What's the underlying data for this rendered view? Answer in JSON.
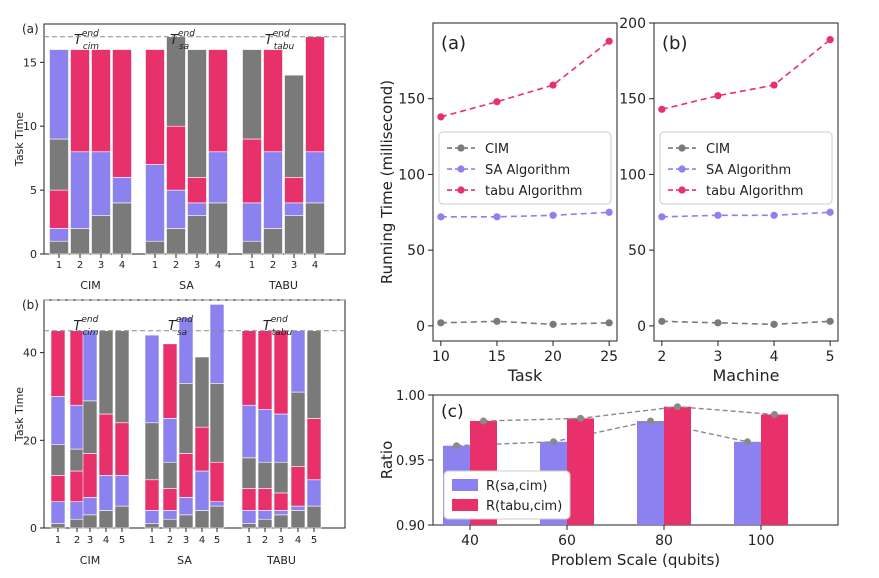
{
  "colors": {
    "gray": "#7a7a7a",
    "blue": "#8b82f0",
    "red": "#e8306a",
    "dash": "#8a8a8a"
  },
  "chart_data": [
    {
      "id": "stacked-a",
      "panel_label": "(a)",
      "type": "bar",
      "ylabel": "Task Time",
      "ylim": [
        0,
        18
      ],
      "yticks": [
        0,
        5,
        10,
        15
      ],
      "groups": [
        {
          "name": "CIM",
          "ann_base": "T",
          "ann_sup": "end",
          "ann_sub": "cim",
          "bar_labels": [
            "1",
            "2",
            "3",
            "4"
          ],
          "bars": [
            [
              1,
              1,
              3,
              4,
              7
            ],
            [
              2,
              6,
              8
            ],
            [
              3,
              5,
              8
            ],
            [
              4,
              2,
              10
            ]
          ]
        },
        {
          "name": "SA",
          "ann_base": "T",
          "ann_sup": "end",
          "ann_sub": "sa",
          "bar_labels": [
            "1",
            "2",
            "3",
            "4"
          ],
          "bars": [
            [
              1,
              6,
              9
            ],
            [
              2,
              3,
              5,
              7
            ],
            [
              3,
              1,
              2,
              10
            ],
            [
              4,
              4,
              8
            ]
          ]
        },
        {
          "name": "TABU",
          "ann_base": "T",
          "ann_sup": "end",
          "ann_sub": "tabu",
          "bar_labels": [
            "1",
            "2",
            "3",
            "4"
          ],
          "bars": [
            [
              1,
              3,
              5,
              7
            ],
            [
              2,
              6,
              8
            ],
            [
              3,
              1,
              2,
              8
            ],
            [
              4,
              4,
              9
            ]
          ]
        }
      ],
      "ref_lines": [
        {
          "value": 17,
          "dashed": true
        }
      ]
    },
    {
      "id": "stacked-b",
      "panel_label": "(b)",
      "type": "bar",
      "ylabel": "Task Time",
      "ylim": [
        0,
        52
      ],
      "yticks": [
        0,
        20,
        40
      ],
      "groups": [
        {
          "name": "CIM",
          "ann_base": "T",
          "ann_sup": "end",
          "ann_sub": "cim",
          "bar_labels": [
            "1",
            "2",
            "3",
            "4",
            "5"
          ],
          "bars": [
            [
              1,
              5,
              6,
              7,
              11,
              15
            ],
            [
              2,
              4,
              7,
              5,
              10,
              17
            ],
            [
              3,
              4,
              10,
              12,
              16
            ],
            [
              4,
              8,
              14,
              19
            ],
            [
              5,
              7,
              12,
              21
            ]
          ]
        },
        {
          "name": "SA",
          "ann_base": "T",
          "ann_sup": "end",
          "ann_sub": "sa",
          "bar_labels": [
            "1",
            "2",
            "3",
            "4",
            "5"
          ],
          "bars": [
            [
              1,
              3,
              7,
              13,
              20
            ],
            [
              2,
              2,
              5,
              6,
              10,
              17
            ],
            [
              3,
              4,
              10,
              16,
              15
            ],
            [
              4,
              9,
              10,
              16
            ],
            [
              5,
              1,
              9,
              18,
              18
            ]
          ]
        },
        {
          "name": "TABU",
          "ann_base": "T",
          "ann_sup": "end",
          "ann_sub": "tabu",
          "bar_labels": [
            "1",
            "2",
            "3",
            "4",
            "5"
          ],
          "bars": [
            [
              1,
              3,
              5,
              7,
              12,
              17
            ],
            [
              2,
              2,
              5,
              6,
              12,
              18
            ],
            [
              3,
              1,
              4,
              7,
              11,
              19
            ],
            [
              4,
              1,
              9,
              17,
              14
            ],
            [
              5,
              6,
              14,
              20
            ]
          ]
        }
      ],
      "ref_lines": [
        {
          "value": 45,
          "dashed": true
        },
        {
          "value": 52,
          "dashed": true
        }
      ]
    },
    {
      "id": "running-task",
      "panel_label": "(a)",
      "type": "line",
      "xlabel": "Task",
      "ylabel": "Running Time (millisecond)",
      "x": [
        10,
        15,
        20,
        25
      ],
      "xlim": [
        9.3,
        25.7
      ],
      "ylim": [
        -10,
        200
      ],
      "yticks": [
        0,
        50,
        100,
        150
      ],
      "grid": false,
      "legend": "center-left",
      "series": [
        {
          "name": "CIM",
          "color_key": "gray",
          "values": [
            2,
            3,
            1,
            2
          ]
        },
        {
          "name": "SA Algorithm",
          "color_key": "blue",
          "values": [
            72,
            72,
            73,
            75
          ]
        },
        {
          "name": "tabu Algorithm",
          "color_key": "red",
          "values": [
            138,
            148,
            159,
            188
          ]
        }
      ]
    },
    {
      "id": "running-machine",
      "panel_label": "(b)",
      "type": "line",
      "xlabel": "Machine",
      "ylabel": "",
      "x": [
        2,
        3,
        4,
        5
      ],
      "xlim": [
        1.86,
        5.14
      ],
      "ylim": [
        -10,
        200
      ],
      "yticks": [
        0,
        50,
        100,
        150,
        200
      ],
      "grid": false,
      "legend": "center-left",
      "series": [
        {
          "name": "CIM",
          "color_key": "gray",
          "values": [
            3,
            2,
            1,
            3
          ]
        },
        {
          "name": "SA Algorithm",
          "color_key": "blue",
          "values": [
            72,
            73,
            73,
            75
          ]
        },
        {
          "name": "tabu Algorithm",
          "color_key": "red",
          "values": [
            143,
            152,
            159,
            189
          ]
        }
      ]
    },
    {
      "id": "ratio",
      "panel_label": "(c)",
      "type": "bar",
      "xlabel": "Problem Scale (qubits)",
      "ylabel": "Ratio",
      "categories": [
        "40",
        "60",
        "80",
        "100"
      ],
      "ylim": [
        0.9,
        1.0
      ],
      "yticks": [
        0.9,
        0.95,
        1.0
      ],
      "legend": "bottom-left",
      "series": [
        {
          "name": "R(sa,cim)",
          "color_key": "blue",
          "values": [
            0.961,
            0.964,
            0.98,
            0.964
          ]
        },
        {
          "name": "R(tabu,cim)",
          "color_key": "red",
          "values": [
            0.98,
            0.982,
            0.991,
            0.985
          ]
        }
      ]
    }
  ]
}
